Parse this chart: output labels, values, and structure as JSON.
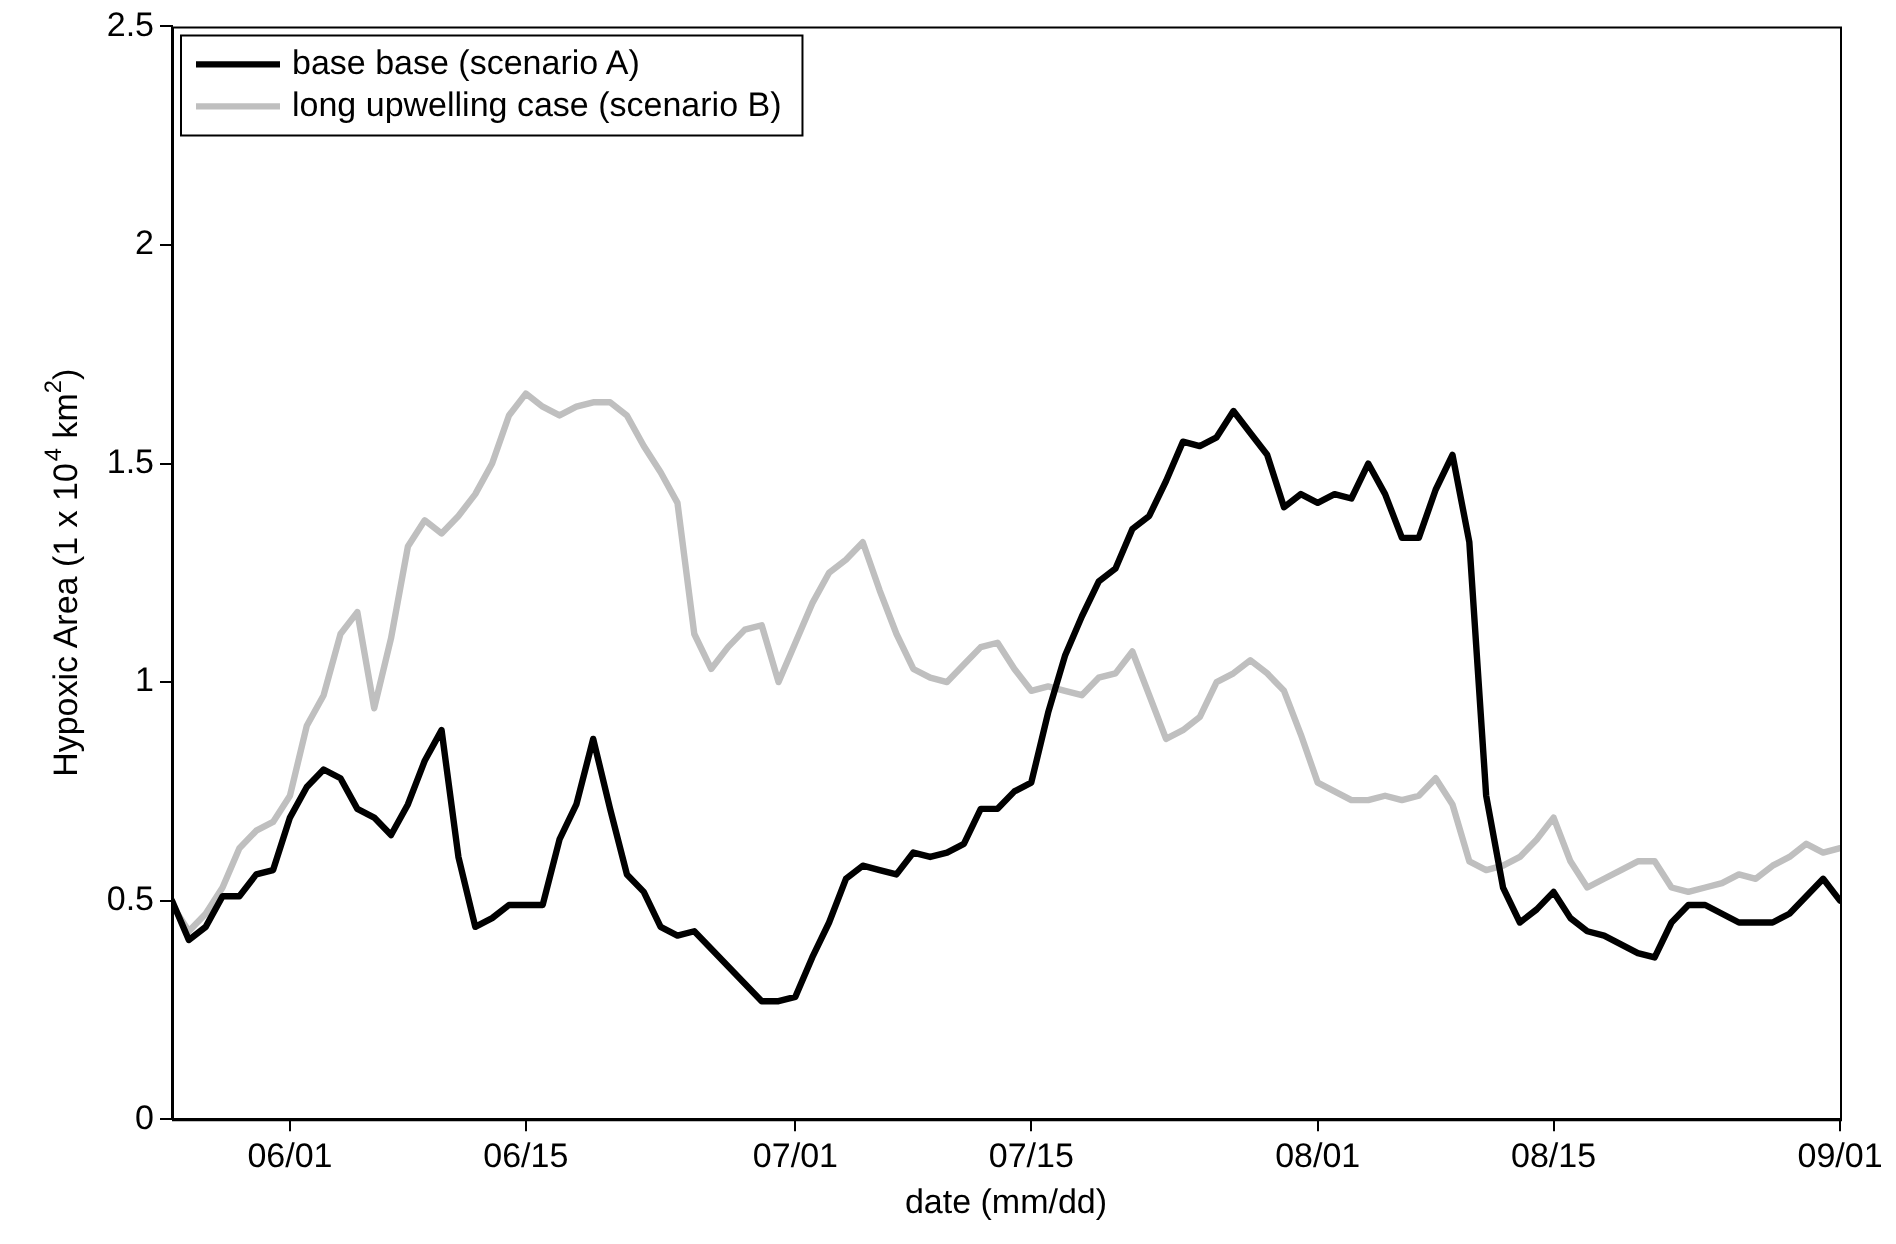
{
  "chart_data": {
    "type": "line",
    "xlabel": "date (mm/dd)",
    "ylabel": "Hypoxic Area (1 x 10$^{4}$ km$^{2}$)",
    "x": [
      "--05-25",
      "--05-26",
      "--05-27",
      "--05-28",
      "--05-29",
      "--05-30",
      "--05-31",
      "--06-01",
      "--06-02",
      "--06-03",
      "--06-04",
      "--06-05",
      "--06-06",
      "--06-07",
      "--06-08",
      "--06-09",
      "--06-10",
      "--06-11",
      "--06-12",
      "--06-13",
      "--06-14",
      "--06-15",
      "--06-16",
      "--06-17",
      "--06-18",
      "--06-19",
      "--06-20",
      "--06-21",
      "--06-22",
      "--06-23",
      "--06-24",
      "--06-25",
      "--06-26",
      "--06-27",
      "--06-28",
      "--06-29",
      "--06-30",
      "--07-01",
      "--07-02",
      "--07-03",
      "--07-04",
      "--07-05",
      "--07-06",
      "--07-07",
      "--07-08",
      "--07-09",
      "--07-10",
      "--07-11",
      "--07-12",
      "--07-13",
      "--07-14",
      "--07-15",
      "--07-16",
      "--07-17",
      "--07-18",
      "--07-19",
      "--07-20",
      "--07-21",
      "--07-22",
      "--07-23",
      "--07-24",
      "--07-25",
      "--07-26",
      "--07-27",
      "--07-28",
      "--07-29",
      "--07-30",
      "--07-31",
      "--08-01",
      "--08-02",
      "--08-03",
      "--08-04",
      "--08-05",
      "--08-06",
      "--08-07",
      "--08-08",
      "--08-09",
      "--08-10",
      "--08-11",
      "--08-12",
      "--08-13",
      "--08-14",
      "--08-15",
      "--08-16",
      "--08-17",
      "--08-18",
      "--08-19",
      "--08-20",
      "--08-21",
      "--08-22",
      "--08-23",
      "--08-24",
      "--08-25",
      "--08-26",
      "--08-27",
      "--08-28",
      "--08-29",
      "--08-30",
      "--08-31",
      "--09-01"
    ],
    "series": [
      {
        "name": "base base (scenario A)",
        "color": "#000000",
        "values": [
          0.5,
          0.41,
          0.44,
          0.51,
          0.51,
          0.56,
          0.57,
          0.69,
          0.76,
          0.8,
          0.78,
          0.71,
          0.69,
          0.65,
          0.72,
          0.82,
          0.89,
          0.6,
          0.44,
          0.46,
          0.49,
          0.49,
          0.49,
          0.64,
          0.72,
          0.87,
          0.71,
          0.56,
          0.52,
          0.44,
          0.42,
          0.43,
          0.39,
          0.35,
          0.31,
          0.27,
          0.27,
          0.28,
          0.37,
          0.45,
          0.55,
          0.58,
          0.57,
          0.56,
          0.61,
          0.6,
          0.61,
          0.63,
          0.71,
          0.71,
          0.75,
          0.77,
          0.93,
          1.06,
          1.15,
          1.23,
          1.26,
          1.35,
          1.38,
          1.46,
          1.55,
          1.54,
          1.56,
          1.62,
          1.57,
          1.52,
          1.4,
          1.43,
          1.41,
          1.43,
          1.42,
          1.5,
          1.43,
          1.33,
          1.33,
          1.44,
          1.52,
          1.32,
          0.74,
          0.53,
          0.45,
          0.48,
          0.52,
          0.46,
          0.43,
          0.42,
          0.4,
          0.38,
          0.37,
          0.45,
          0.49,
          0.49,
          0.47,
          0.45,
          0.45,
          0.45,
          0.47,
          0.51,
          0.55,
          0.5
        ]
      },
      {
        "name": "long upwelling case (scenario B)",
        "color": "#bfbfbf",
        "values": [
          0.49,
          0.43,
          0.47,
          0.53,
          0.62,
          0.66,
          0.68,
          0.74,
          0.9,
          0.97,
          1.11,
          1.16,
          0.94,
          1.1,
          1.31,
          1.37,
          1.34,
          1.38,
          1.43,
          1.5,
          1.61,
          1.66,
          1.63,
          1.61,
          1.63,
          1.64,
          1.64,
          1.61,
          1.54,
          1.48,
          1.41,
          1.11,
          1.03,
          1.08,
          1.12,
          1.13,
          1.0,
          1.09,
          1.18,
          1.25,
          1.28,
          1.32,
          1.21,
          1.11,
          1.03,
          1.01,
          1.0,
          1.04,
          1.08,
          1.09,
          1.03,
          0.98,
          0.99,
          0.98,
          0.97,
          1.01,
          1.02,
          1.07,
          0.97,
          0.87,
          0.89,
          0.92,
          1.0,
          1.02,
          1.05,
          1.02,
          0.98,
          0.88,
          0.77,
          0.75,
          0.73,
          0.73,
          0.74,
          0.73,
          0.74,
          0.78,
          0.72,
          0.59,
          0.57,
          0.58,
          0.6,
          0.64,
          0.69,
          0.59,
          0.53,
          0.55,
          0.57,
          0.59,
          0.59,
          0.53,
          0.52,
          0.53,
          0.54,
          0.56,
          0.55,
          0.58,
          0.6,
          0.63,
          0.61,
          0.62
        ]
      }
    ],
    "xlim": [
      "--05-25",
      "--09-01"
    ],
    "xticks": [
      {
        "value": "--06-01",
        "label": "06/01"
      },
      {
        "value": "--06-15",
        "label": "06/15"
      },
      {
        "value": "--07-01",
        "label": "07/01"
      },
      {
        "value": "--07-15",
        "label": "07/15"
      },
      {
        "value": "--08-01",
        "label": "08/01"
      },
      {
        "value": "--08-15",
        "label": "08/15"
      },
      {
        "value": "--09-01",
        "label": "09/01"
      }
    ],
    "ylim": [
      0,
      2.5
    ],
    "yticks": [
      0,
      0.5,
      1,
      1.5,
      2,
      2.5
    ],
    "grid": false,
    "legend": "top left",
    "line_style": "solid",
    "marker": "none"
  }
}
